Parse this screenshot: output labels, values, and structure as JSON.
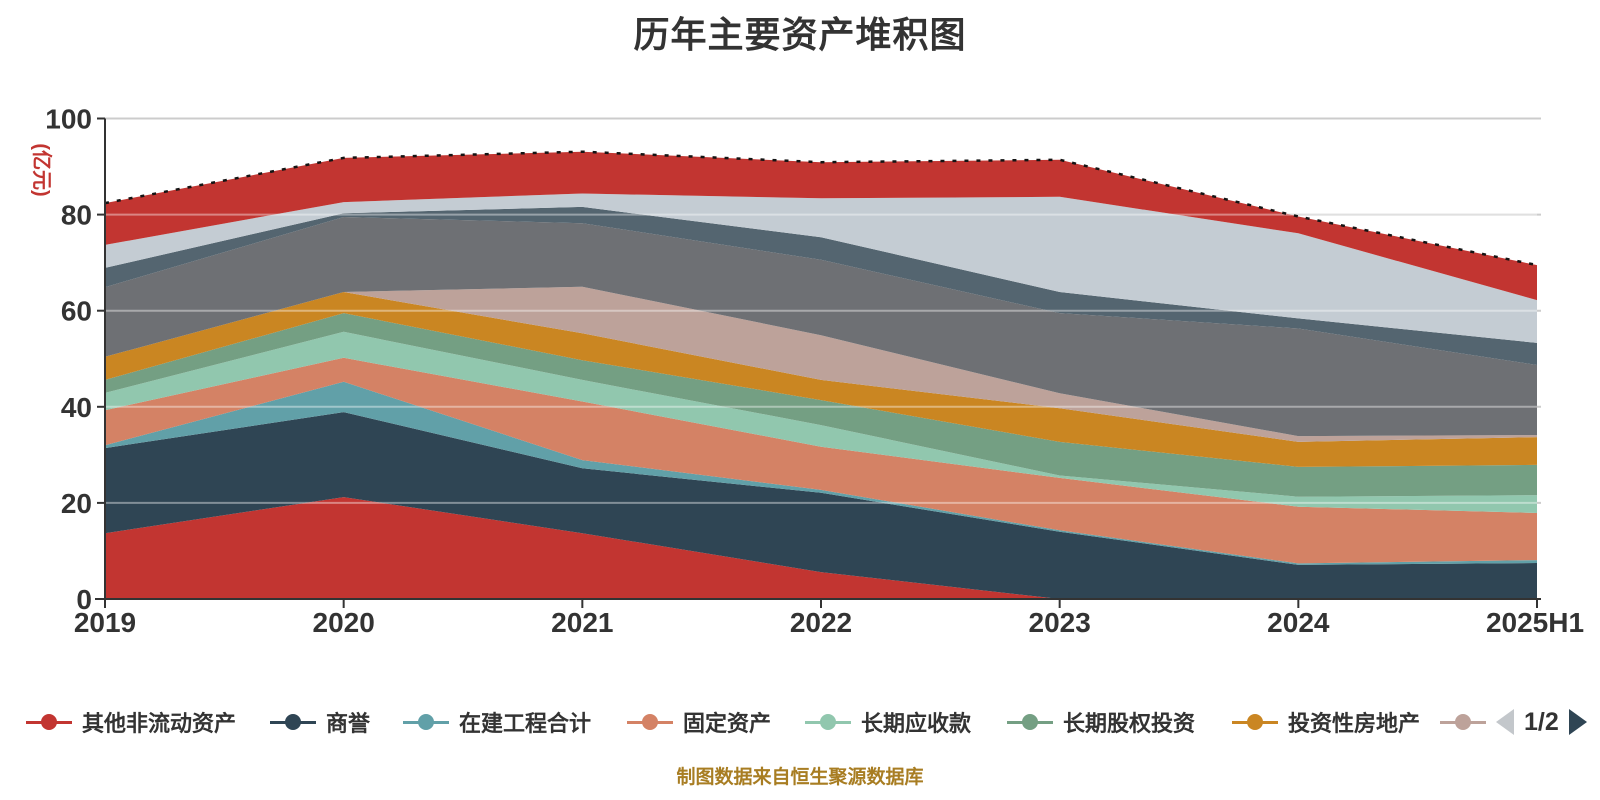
{
  "title": "历年主要资产堆积图",
  "footnote": "制图数据来自恒生聚源数据库",
  "y_axis": {
    "name": "(亿元)",
    "name_color": "#c23531",
    "ticks": [
      "0",
      "20",
      "40",
      "60",
      "80",
      "100"
    ]
  },
  "x_axis": {
    "categories": [
      "2019",
      "2020",
      "2021",
      "2022",
      "2023",
      "2024",
      "2025H1"
    ]
  },
  "legend": {
    "items": [
      {
        "label": "其他非流动资产",
        "color": "#c23531"
      },
      {
        "label": "商誉",
        "color": "#2f4554"
      },
      {
        "label": "在建工程合计",
        "color": "#61a0a8"
      },
      {
        "label": "固定资产",
        "color": "#d48265"
      },
      {
        "label": "长期应收款",
        "color": "#91c7ae"
      },
      {
        "label": "长期股权投资",
        "color": "#749f83"
      },
      {
        "label": "投资性房地产",
        "color": "#ca8622"
      },
      {
        "label": "",
        "color": "#bda29a"
      }
    ],
    "pager": {
      "text": "1/2"
    }
  },
  "chart_data": {
    "type": "area",
    "stacked": true,
    "title": "历年主要资产堆积图",
    "x": [
      "2019",
      "2020",
      "2021",
      "2022",
      "2023",
      "2024",
      "2025H1"
    ],
    "ylabel": "(亿元)",
    "ylim": [
      0,
      100
    ],
    "grid": true,
    "legend_position": "bottom",
    "series": [
      {
        "name": "其他非流动资产",
        "color": "#c23531",
        "values": [
          13.7,
          21.2,
          13.7,
          5.6,
          0,
          0,
          0
        ]
      },
      {
        "name": "商誉",
        "color": "#2f4554",
        "values": [
          17.7,
          17.7,
          13.5,
          16.5,
          14.0,
          7.1,
          7.5
        ]
      },
      {
        "name": "在建工程合计",
        "color": "#61a0a8",
        "values": [
          0.6,
          6.3,
          1.7,
          0.6,
          0.3,
          0.3,
          0.6
        ]
      },
      {
        "name": "固定资产",
        "color": "#d48265",
        "values": [
          7.3,
          5.0,
          12.2,
          9.0,
          10.9,
          11.8,
          9.8
        ]
      },
      {
        "name": "长期应收款",
        "color": "#91c7ae",
        "values": [
          3.6,
          5.4,
          4.5,
          4.5,
          0.5,
          2.1,
          3.7
        ]
      },
      {
        "name": "长期股权投资",
        "color": "#749f83",
        "values": [
          2.7,
          3.9,
          4.1,
          5.2,
          7.0,
          6.2,
          6.3
        ]
      },
      {
        "name": "投资性房地产",
        "color": "#ca8622",
        "values": [
          4.8,
          4.4,
          5.6,
          4.2,
          7.0,
          5.2,
          5.8
        ]
      },
      {
        "name": "",
        "color": "#bda29a",
        "values": [
          0,
          0,
          9.7,
          9.3,
          3.1,
          1.2,
          0.4
        ]
      },
      {
        "name": "",
        "color": "#6e7074",
        "values": [
          14.5,
          15.6,
          13.2,
          15.7,
          16.7,
          22.4,
          14.6
        ]
      },
      {
        "name": "",
        "color": "#546570",
        "values": [
          4.0,
          0.8,
          3.4,
          4.7,
          4.4,
          2.1,
          4.6
        ]
      },
      {
        "name": "",
        "color": "#c4ccd3",
        "values": [
          4.8,
          2.3,
          2.8,
          8.1,
          19.8,
          17.7,
          8.9
        ]
      },
      {
        "name": "",
        "color": "#c23531",
        "values": [
          8.7,
          9.2,
          8.7,
          7.5,
          7.7,
          3.5,
          7.3
        ]
      }
    ],
    "total_line": {
      "style": "dashed",
      "color": "#141414"
    }
  }
}
